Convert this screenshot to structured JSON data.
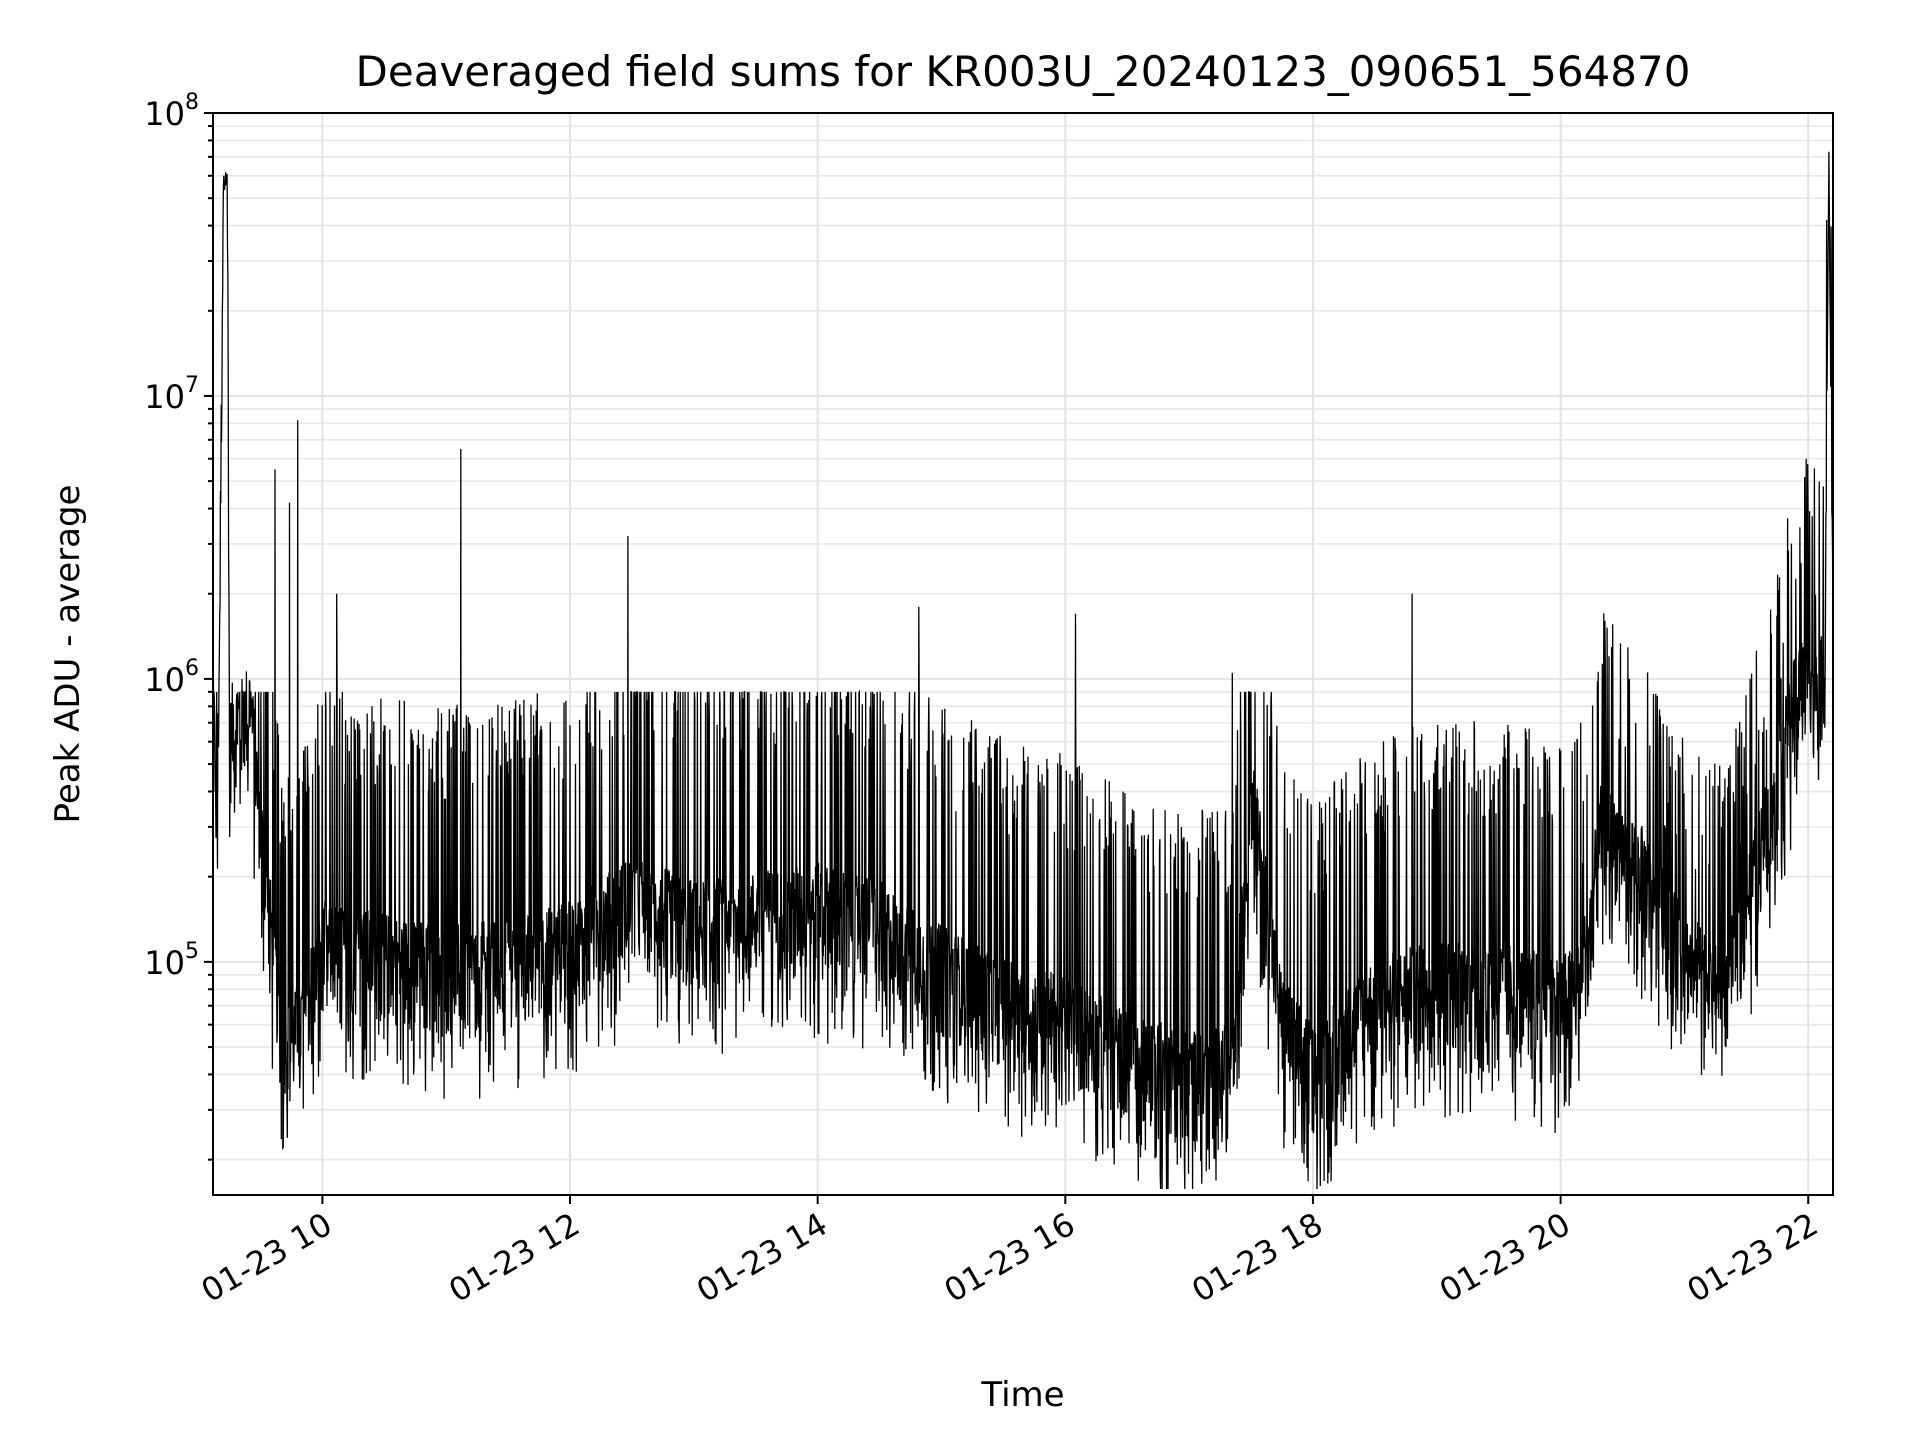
{
  "chart_data": {
    "type": "line",
    "title": "Deaveraged field sums for KR003U_20240123_090651_564870",
    "xlabel": "Time",
    "ylabel": "Peak ADU - average",
    "yscale": "log",
    "grid": true,
    "x_range": [
      "01-23 09:07",
      "01-23 22:12"
    ],
    "y_range": [
      15000,
      100000000
    ],
    "x_ticks": [
      {
        "value": "01-23 10:00",
        "label": "01-23 10"
      },
      {
        "value": "01-23 12:00",
        "label": "01-23 12"
      },
      {
        "value": "01-23 14:00",
        "label": "01-23 14"
      },
      {
        "value": "01-23 16:00",
        "label": "01-23 16"
      },
      {
        "value": "01-23 18:00",
        "label": "01-23 18"
      },
      {
        "value": "01-23 20:00",
        "label": "01-23 20"
      },
      {
        "value": "01-23 22:00",
        "label": "01-23 22"
      }
    ],
    "y_ticks": [
      {
        "value": 100000,
        "base": "10",
        "exp": "5"
      },
      {
        "value": 1000000,
        "base": "10",
        "exp": "6"
      },
      {
        "value": 10000000,
        "base": "10",
        "exp": "7"
      },
      {
        "value": 100000000,
        "base": "10",
        "exp": "8"
      }
    ],
    "series_color": "#000000",
    "series": [
      {
        "x": [
          "01-23 09:07",
          "01-23 09:09",
          "01-23 09:10",
          "01-23 09:12",
          "01-23 09:13",
          "01-23 09:14",
          "01-23 09:15",
          "01-23 09:17",
          "01-23 09:20",
          "01-23 09:25",
          "01-23 09:30",
          "01-23 09:35",
          "01-23 09:40",
          "01-23 09:45",
          "01-23 09:50",
          "01-23 10:00",
          "01-23 10:30",
          "01-23 11:00",
          "01-23 11:30",
          "01-23 12:00",
          "01-23 12:30",
          "01-23 13:00",
          "01-23 13:30",
          "01-23 14:00",
          "01-23 14:30",
          "01-23 15:00",
          "01-23 15:30",
          "01-23 16:00",
          "01-23 16:30",
          "01-23 17:00",
          "01-23 17:20",
          "01-23 17:30",
          "01-23 17:45",
          "01-23 18:00",
          "01-23 18:30",
          "01-23 19:00",
          "01-23 19:30",
          "01-23 20:00",
          "01-23 20:10",
          "01-23 20:20",
          "01-23 20:40",
          "01-23 21:00",
          "01-23 21:20",
          "01-23 21:40",
          "01-23 21:55",
          "01-23 22:00",
          "01-23 22:05",
          "01-23 22:08",
          "01-23 22:10",
          "01-23 22:12"
        ],
        "y": [
          700000,
          400000,
          1000000,
          55000000,
          60000000,
          62000000,
          550000,
          700000,
          650000,
          800000,
          300000,
          130000,
          60000,
          50000,
          60000,
          110000,
          100000,
          90000,
          95000,
          110000,
          160000,
          130000,
          140000,
          150000,
          130000,
          90000,
          70000,
          60000,
          45000,
          38000,
          40000,
          400000,
          60000,
          40000,
          70000,
          80000,
          80000,
          70000,
          80000,
          300000,
          200000,
          100000,
          80000,
          300000,
          900000,
          1100000,
          900000,
          1000000,
          70000000,
          1200000
        ]
      }
    ],
    "spikes": [
      {
        "x": "01-23 09:37",
        "y": 5500000
      },
      {
        "x": "01-23 09:44",
        "y": 4200000
      },
      {
        "x": "01-23 09:48",
        "y": 8200000
      },
      {
        "x": "01-23 10:07",
        "y": 2000000
      },
      {
        "x": "01-23 11:07",
        "y": 6500000
      },
      {
        "x": "01-23 12:28",
        "y": 3200000
      },
      {
        "x": "01-23 14:49",
        "y": 1800000
      },
      {
        "x": "01-23 16:05",
        "y": 1700000
      },
      {
        "x": "01-23 17:21",
        "y": 1050000
      },
      {
        "x": "01-23 18:48",
        "y": 2000000
      },
      {
        "x": "01-23 21:59",
        "y": 6000000
      }
    ]
  }
}
